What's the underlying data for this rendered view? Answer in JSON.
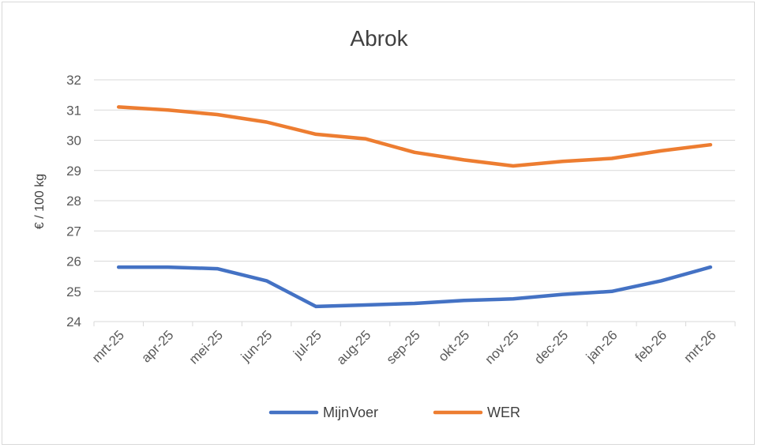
{
  "chart_data": {
    "type": "line",
    "title": "Abrok",
    "xlabel": "",
    "ylabel": "€ / 100 kg",
    "categories": [
      "mrt-25",
      "apr-25",
      "mei-25",
      "jun-25",
      "jul-25",
      "aug-25",
      "sep-25",
      "okt-25",
      "nov-25",
      "dec-25",
      "jan-26",
      "feb-26",
      "mrt-26"
    ],
    "ylim": [
      24,
      32
    ],
    "yticks": [
      "24",
      "25",
      "26",
      "27",
      "28",
      "29",
      "30",
      "31",
      "32"
    ],
    "grid": true,
    "legend": "bottom",
    "series": [
      {
        "name": "MijnVoer",
        "color": "#4472c4",
        "values": [
          25.8,
          25.8,
          25.75,
          25.35,
          24.5,
          24.55,
          24.6,
          24.7,
          24.75,
          24.9,
          25.0,
          25.35,
          25.8
        ]
      },
      {
        "name": "WER",
        "color": "#ed7d31",
        "values": [
          31.1,
          31.0,
          30.85,
          30.6,
          30.2,
          30.05,
          29.6,
          29.35,
          29.15,
          29.3,
          29.4,
          29.65,
          29.85
        ]
      }
    ]
  }
}
